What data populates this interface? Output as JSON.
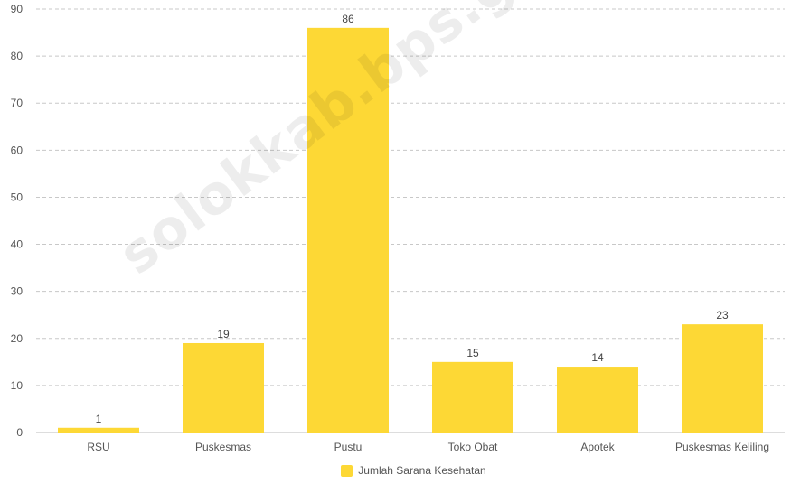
{
  "chart_data": {
    "type": "bar",
    "categories": [
      "RSU",
      "Puskesmas",
      "Pustu",
      "Toko Obat",
      "Apotek",
      "Puskesmas Keliling"
    ],
    "series": [
      {
        "name": "Jumlah Sarana Kesehatan",
        "values": [
          1,
          19,
          86,
          15,
          14,
          23
        ],
        "color": "#fdd835"
      }
    ],
    "ylim": [
      0,
      90
    ],
    "yticks": [
      0,
      10,
      20,
      30,
      40,
      50,
      60,
      70,
      80,
      90
    ],
    "grid": true,
    "legend": "bottom-center",
    "data_labels": true
  },
  "watermark": {
    "text": "solokkab.bps.go.id"
  }
}
